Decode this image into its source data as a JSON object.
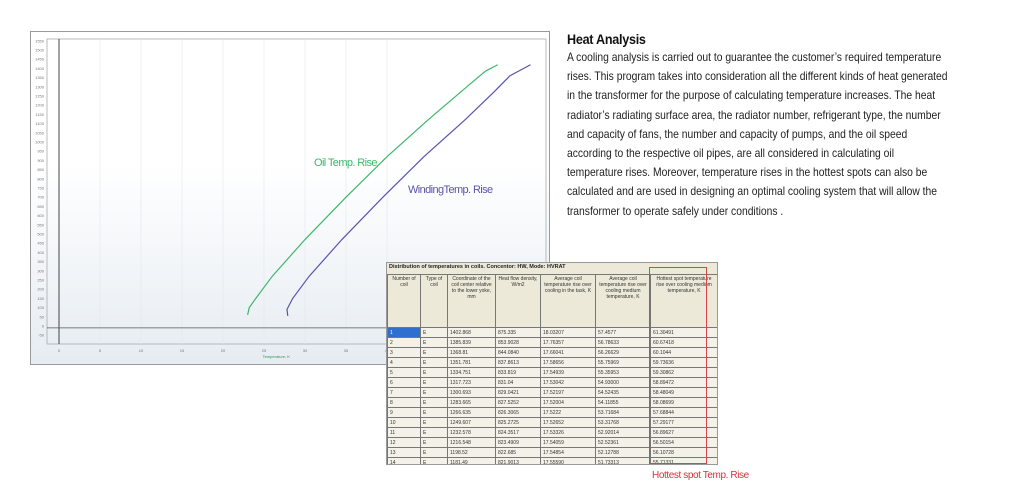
{
  "chart_data": {
    "type": "line",
    "xlabel": "Temperature, K",
    "ylabel": "",
    "xlim": [
      -3,
      60
    ],
    "ylim": [
      -75,
      1560
    ],
    "x_ticks": [
      "0",
      "5",
      "10",
      "15",
      "20",
      "25",
      "30",
      "35",
      "40"
    ],
    "y_ticks": [
      "-50",
      "0",
      "50",
      "100",
      "150",
      "200",
      "250",
      "300",
      "350",
      "400",
      "450",
      "500",
      "550",
      "600",
      "650",
      "700",
      "750",
      "800",
      "850",
      "900",
      "950",
      "1000",
      "1050",
      "1100",
      "1150",
      "1200",
      "1250",
      "1300",
      "1350",
      "1400",
      "1450",
      "1500",
      "1550"
    ],
    "grid": true,
    "series": [
      {
        "name": "Oil Temp. Rise",
        "color": "#3cb86a",
        "points": [
          [
            23,
            60
          ],
          [
            23.2,
            100
          ],
          [
            24,
            150
          ],
          [
            26,
            270
          ],
          [
            30,
            470
          ],
          [
            35,
            700
          ],
          [
            40,
            920
          ],
          [
            45,
            1120
          ],
          [
            50,
            1310
          ],
          [
            52,
            1385
          ],
          [
            53.5,
            1420
          ]
        ]
      },
      {
        "name": "WindingTemp. Rise",
        "color": "#5a52b0",
        "points": [
          [
            27.9,
            55
          ],
          [
            27.8,
            90
          ],
          [
            28.5,
            150
          ],
          [
            30.5,
            270
          ],
          [
            34.5,
            470
          ],
          [
            39.5,
            700
          ],
          [
            44.5,
            920
          ],
          [
            49.5,
            1120
          ],
          [
            53,
            1270
          ],
          [
            55,
            1360
          ],
          [
            57.5,
            1420
          ]
        ]
      }
    ]
  },
  "text": {
    "heading": "Heat Analysis",
    "body": "A cooling analysis is carried out to guarantee the customer’s required temperature rises. This program takes into consideration all the different kinds of heat generated in the transformer for the purpose of calculating temperature increases. The heat radiator’s radiating surface area, the radiator number, refrigerant type, the number and capacity of fans, the number and capacity of pumps, and the oil speed according to the respective oil pipes, are all considered in calculating oil temperature rises. Moreover, temperature rises in the hottest spots can also be calculated and are used in designing an optimal cooling system that will allow the transformer to operate safely under conditions ."
  },
  "table": {
    "title": "Distribution of temperatures in coils. Concentor: HW, Mode: HVRAT",
    "headers": [
      "Number of coil",
      "Type of coil",
      "Coordinate of the coil center relative to the lower yoke, mm",
      "Heat flow density, W/m2",
      "Average coil temperature rise over cooling in the task, K",
      "Average coil temperature rise over cooling medium temperature, K",
      "Hottest spot temperature rise over cooling medium temperature, K"
    ],
    "rows": [
      [
        "1",
        "E",
        "1402.868",
        "875.335",
        "18.03207",
        "57.4577",
        "61.30491"
      ],
      [
        "2",
        "E",
        "1385.839",
        "853.9028",
        "17.76357",
        "56.78633",
        "60.67418"
      ],
      [
        "3",
        "E",
        "1368.81",
        "844.0840",
        "17.66041",
        "56.26629",
        "60.1044"
      ],
      [
        "4",
        "E",
        "1351.781",
        "837.8613",
        "17.58656",
        "55.75969",
        "59.73636"
      ],
      [
        "5",
        "E",
        "1334.751",
        "833.819",
        "17.54939",
        "55.35953",
        "59.30862"
      ],
      [
        "6",
        "E",
        "1317.723",
        "831.04",
        "17.53042",
        "54.93000",
        "58.89472"
      ],
      [
        "7",
        "E",
        "1300.693",
        "829.0421",
        "17.52197",
        "54.52435",
        "58.48049"
      ],
      [
        "8",
        "E",
        "1283.665",
        "827.5252",
        "17.52004",
        "54.11855",
        "58.08699"
      ],
      [
        "9",
        "E",
        "1266.635",
        "826.3065",
        "17.5222",
        "53.71684",
        "57.68844"
      ],
      [
        "10",
        "E",
        "1249.607",
        "825.2725",
        "17.52652",
        "53.31768",
        "57.29177"
      ],
      [
        "11",
        "E",
        "1232.578",
        "824.3517",
        "17.53326",
        "52.92014",
        "56.89627"
      ],
      [
        "12",
        "E",
        "1216.548",
        "823.4909",
        "17.54059",
        "52.52361",
        "56.50154"
      ],
      [
        "13",
        "E",
        "1198.52",
        "822.685",
        "17.54854",
        "52.12788",
        "56.10728"
      ],
      [
        "14",
        "E",
        "1181.49",
        "821.9013",
        "17.55590",
        "51.73313",
        "55.71331"
      ]
    ],
    "highlight_label": "Hottest spot Temp. Rise",
    "highlight_color": "#d8454f"
  }
}
